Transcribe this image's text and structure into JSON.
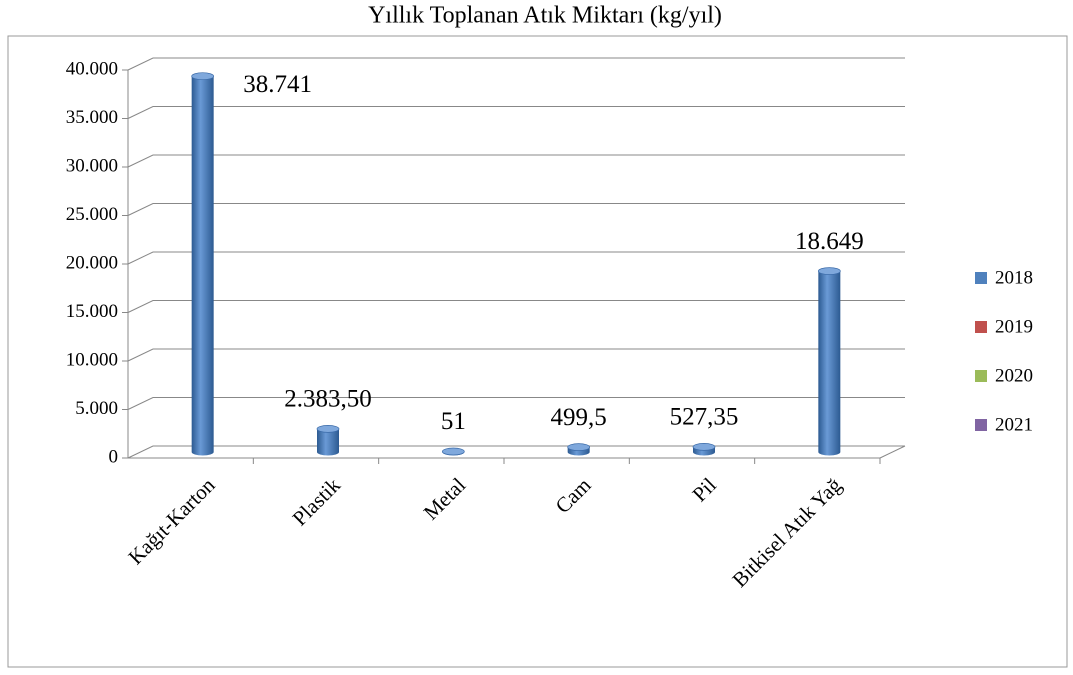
{
  "chart_data": {
    "type": "bar3d",
    "title": "Yıllık Toplanan Atık Miktarı (kg/yıl)",
    "categories": [
      "Kağıt-Karton",
      "Plastik",
      "Metal",
      "Cam",
      "Pil",
      "Bitkisel Atık Yağ"
    ],
    "series": [
      {
        "name": "2018",
        "color": "#4f81bd",
        "values": [
          38741,
          2383.5,
          51,
          499.5,
          527.35,
          18649
        ],
        "value_labels": [
          "38.741",
          "2.383,50",
          "51",
          "499,5",
          "527,35",
          "18.649"
        ]
      },
      {
        "name": "2019",
        "color": "#c0504d",
        "values": [
          null,
          null,
          null,
          null,
          null,
          null
        ]
      },
      {
        "name": "2020",
        "color": "#9bbb59",
        "values": [
          null,
          null,
          null,
          null,
          null,
          null
        ]
      },
      {
        "name": "2021",
        "color": "#8064a2",
        "values": [
          null,
          null,
          null,
          null,
          null,
          null
        ]
      }
    ],
    "ylim": [
      0,
      40000
    ],
    "yticks": [
      0,
      {
        "value": 5000,
        "label": "5.000"
      },
      {
        "value": 10000,
        "label": "10.000"
      },
      {
        "value": 15000,
        "label": "15.000"
      },
      {
        "value": 20000,
        "label": "20.000"
      },
      {
        "value": 25000,
        "label": "25.000"
      },
      {
        "value": 30000,
        "label": "30.000"
      },
      {
        "value": 35000,
        "label": "35.000"
      },
      {
        "value": 40000,
        "label": "40.000"
      }
    ],
    "grid": true,
    "legend": "right"
  }
}
